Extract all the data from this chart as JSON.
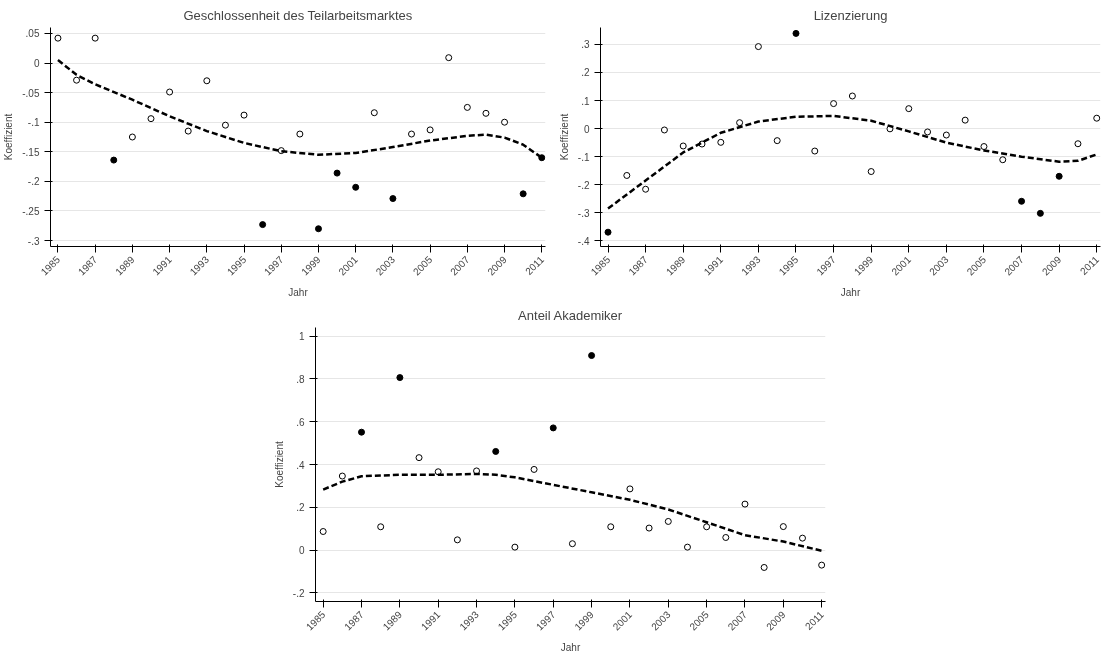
{
  "chart_data": [
    {
      "type": "scatter",
      "title": "Geschlossenheit des Teilarbeitsmarktes",
      "xlabel": "Jahr",
      "ylabel": "Koeffizient",
      "xlim": [
        1984.6,
        2011.2
      ],
      "ylim": [
        -0.31,
        0.06
      ],
      "xticks": [
        1985,
        1987,
        1989,
        1991,
        1993,
        1995,
        1997,
        1999,
        2001,
        2003,
        2005,
        2007,
        2009,
        2011
      ],
      "yticks": [
        {
          "value": 0.05,
          "label": ".05"
        },
        0,
        {
          "value": -0.05,
          "label": "-.05"
        },
        {
          "value": -0.1,
          "label": "-.1"
        },
        {
          "value": -0.15,
          "label": "-.15"
        },
        {
          "value": -0.2,
          "label": "-.2"
        },
        {
          "value": -0.25,
          "label": "-.25"
        },
        {
          "value": -0.3,
          "label": "-.3"
        }
      ],
      "grid": "y",
      "line_style": "dashed",
      "series": [
        {
          "marker": "circle",
          "color": "#ffffff",
          "x": [
            1985,
            1986,
            1987,
            1989,
            1990,
            1991,
            1992,
            1993,
            1994,
            1995,
            1997,
            1998,
            2002,
            2004,
            2005,
            2006,
            2007,
            2008,
            2009
          ],
          "values": [
            0.042,
            -0.029,
            0.042,
            -0.125,
            -0.094,
            -0.049,
            -0.115,
            -0.03,
            -0.105,
            -0.088,
            -0.148,
            -0.12,
            -0.084,
            -0.12,
            -0.113,
            0.009,
            -0.075,
            -0.085,
            -0.1
          ]
        },
        {
          "marker": "circle",
          "color": "#000000",
          "x": [
            1988,
            1996,
            1999,
            2000,
            2001,
            2003,
            2010,
            2011
          ],
          "values": [
            -0.164,
            -0.273,
            -0.28,
            -0.186,
            -0.21,
            -0.229,
            -0.221,
            -0.16
          ]
        },
        {
          "type": "line",
          "marker": "none",
          "color": "#000000",
          "x": [
            1985,
            1986,
            1987,
            1989,
            1991,
            1993,
            1995,
            1997,
            1999,
            2001,
            2003,
            2005,
            2007,
            2008,
            2009,
            2010,
            2011
          ],
          "values": [
            0.005,
            -0.02,
            -0.036,
            -0.062,
            -0.09,
            -0.115,
            -0.135,
            -0.149,
            -0.155,
            -0.152,
            -0.142,
            -0.131,
            -0.123,
            -0.121,
            -0.126,
            -0.138,
            -0.16
          ]
        }
      ]
    },
    {
      "type": "scatter",
      "title": "Lizenzierung",
      "xlabel": "Jahr",
      "ylabel": "Koeffizient",
      "xlim": [
        1984.6,
        2011.2
      ],
      "ylim": [
        -0.42,
        0.36
      ],
      "xticks": [
        1985,
        1987,
        1989,
        1991,
        1993,
        1995,
        1997,
        1999,
        2001,
        2003,
        2005,
        2007,
        2009,
        2011
      ],
      "yticks": [
        {
          "value": 0.3,
          "label": ".3"
        },
        {
          "value": 0.2,
          "label": ".2"
        },
        {
          "value": 0.1,
          "label": ".1"
        },
        0,
        {
          "value": -0.1,
          "label": "-.1"
        },
        {
          "value": -0.2,
          "label": "-.2"
        },
        {
          "value": -0.3,
          "label": "-.3"
        },
        {
          "value": -0.4,
          "label": "-.4"
        }
      ],
      "grid": "y",
      "line_style": "dashed",
      "series": [
        {
          "marker": "circle",
          "color": "#ffffff",
          "x": [
            1986,
            1987,
            1988,
            1989,
            1990,
            1991,
            1992,
            1993,
            1994,
            1996,
            1997,
            1998,
            1999,
            2000,
            2001,
            2002,
            2003,
            2004,
            2005,
            2006,
            2010,
            2011
          ],
          "values": [
            -0.167,
            -0.216,
            -0.005,
            -0.062,
            -0.055,
            -0.049,
            0.021,
            0.292,
            -0.043,
            -0.08,
            0.089,
            0.116,
            -0.153,
            -0.001,
            0.071,
            -0.012,
            -0.023,
            0.03,
            -0.064,
            -0.111,
            -0.054,
            0.037
          ]
        },
        {
          "marker": "circle",
          "color": "#000000",
          "x": [
            1985,
            1995,
            2007,
            2008,
            2009
          ],
          "values": [
            -0.369,
            0.339,
            -0.259,
            -0.302,
            -0.17
          ]
        },
        {
          "type": "line",
          "marker": "none",
          "color": "#000000",
          "x": [
            1985,
            1987,
            1989,
            1991,
            1993,
            1995,
            1997,
            1999,
            2001,
            2003,
            2005,
            2007,
            2009,
            2010,
            2011
          ],
          "values": [
            -0.285,
            -0.185,
            -0.085,
            -0.015,
            0.025,
            0.042,
            0.045,
            0.028,
            -0.01,
            -0.05,
            -0.078,
            -0.1,
            -0.118,
            -0.115,
            -0.092
          ]
        }
      ]
    },
    {
      "type": "scatter",
      "title": "Anteil Akademiker",
      "xlabel": "Jahr",
      "ylabel": "Koeffizient",
      "xlim": [
        1984.6,
        2011.2
      ],
      "ylim": [
        -0.24,
        1.04
      ],
      "xticks": [
        1985,
        1987,
        1989,
        1991,
        1993,
        1995,
        1997,
        1999,
        2001,
        2003,
        2005,
        2007,
        2009,
        2011
      ],
      "yticks": [
        1,
        {
          "value": 0.8,
          "label": ".8"
        },
        {
          "value": 0.6,
          "label": ".6"
        },
        {
          "value": 0.4,
          "label": ".4"
        },
        {
          "value": 0.2,
          "label": ".2"
        },
        0,
        {
          "value": -0.2,
          "label": "-.2"
        }
      ],
      "grid": "y",
      "line_style": "dashed",
      "series": [
        {
          "marker": "circle",
          "color": "#ffffff",
          "x": [
            1985,
            1986,
            1988,
            1990,
            1991,
            1992,
            1993,
            1995,
            1996,
            1998,
            2000,
            2001,
            2002,
            2003,
            2004,
            2005,
            2006,
            2007,
            2008,
            2009,
            2010,
            2011
          ],
          "values": [
            0.087,
            0.346,
            0.109,
            0.432,
            0.366,
            0.048,
            0.37,
            0.014,
            0.377,
            0.03,
            0.109,
            0.286,
            0.103,
            0.134,
            0.014,
            0.109,
            0.059,
            0.215,
            -0.081,
            0.11,
            0.056,
            -0.07
          ]
        },
        {
          "marker": "circle",
          "color": "#000000",
          "x": [
            1987,
            1989,
            1994,
            1997,
            1999
          ],
          "values": [
            0.551,
            0.806,
            0.461,
            0.571,
            0.909
          ]
        },
        {
          "type": "line",
          "marker": "none",
          "color": "#000000",
          "x": [
            1985,
            1986,
            1987,
            1989,
            1991,
            1993,
            1994,
            1995,
            1997,
            1999,
            2001,
            2003,
            2005,
            2007,
            2009,
            2011
          ],
          "values": [
            0.283,
            0.32,
            0.345,
            0.352,
            0.352,
            0.356,
            0.352,
            0.34,
            0.305,
            0.27,
            0.235,
            0.19,
            0.13,
            0.07,
            0.04,
            -0.003
          ]
        }
      ]
    }
  ]
}
